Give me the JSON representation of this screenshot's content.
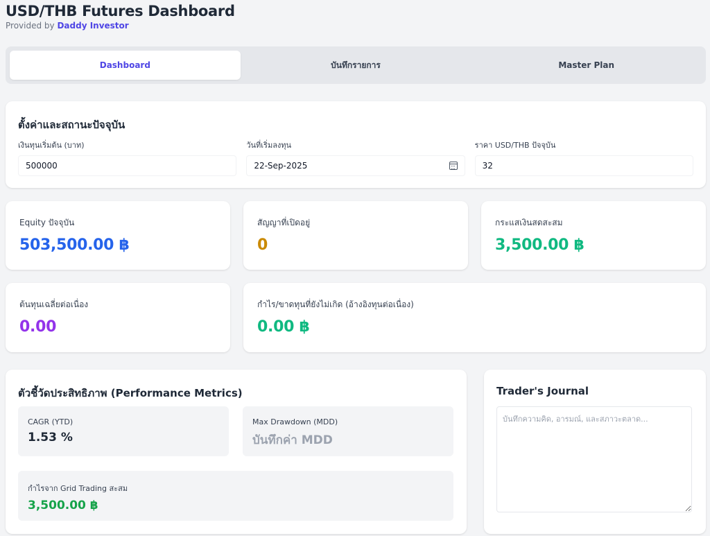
{
  "header": {
    "title": "USD/THB Futures Dashboard",
    "subtitle_prefix": "Provided by",
    "subtitle_link": "Daddy Investor"
  },
  "tabs": [
    {
      "label": "Dashboard",
      "active": true
    },
    {
      "label": "บันทึกรายการ",
      "active": false
    },
    {
      "label": "Master Plan",
      "active": false
    }
  ],
  "settings": {
    "title": "ตั้งค่าและสถานะปัจจุบัน",
    "capital_label": "เงินทุนเริ่มต้น (บาท)",
    "capital_value": "500000",
    "start_date_label": "วันที่เริ่มลงทุน",
    "start_date_value": "22-Sep-2025",
    "price_label": "ราคา USD/THB ปัจจุบัน",
    "price_value": "32"
  },
  "stats": {
    "equity_label": "Equity ปัจจุบัน",
    "equity_value": "503,500.00 ฿",
    "open_contracts_label": "สัญญาที่เปิดอยู่",
    "open_contracts_value": "0",
    "cashflow_label": "กระแสเงินสดสะสม",
    "cashflow_value": "3,500.00 ฿",
    "avg_cost_label": "ต้นทุนเฉลี่ยต่อเนื่อง",
    "avg_cost_value": "0.00",
    "unrealized_label": "กำไร/ขาดทุนที่ยังไม่เกิด (อ้างอิงทุนต่อเนื่อง)",
    "unrealized_value": "0.00 ฿"
  },
  "colors": {
    "equity": "#2563eb",
    "open_contracts": "#ca8a04",
    "cashflow": "#10b981",
    "avg_cost": "#9333ea",
    "unrealized": "#10b981",
    "accent": "#4f46e5"
  },
  "performance": {
    "title": "ตัวชี้วัดประสิทธิภาพ (Performance Metrics)",
    "cagr_label": "CAGR (YTD)",
    "cagr_value": "1.53 %",
    "mdd_label": "Max Drawdown (MDD)",
    "mdd_value": "บันทึกค่า MDD",
    "grid_label": "กำไรจาก Grid Trading สะสม",
    "grid_value": "3,500.00 ฿"
  },
  "journal": {
    "title": "Trader's Journal",
    "placeholder": "บันทึกความคิด, อารมณ์, และสภาวะตลาด..."
  }
}
